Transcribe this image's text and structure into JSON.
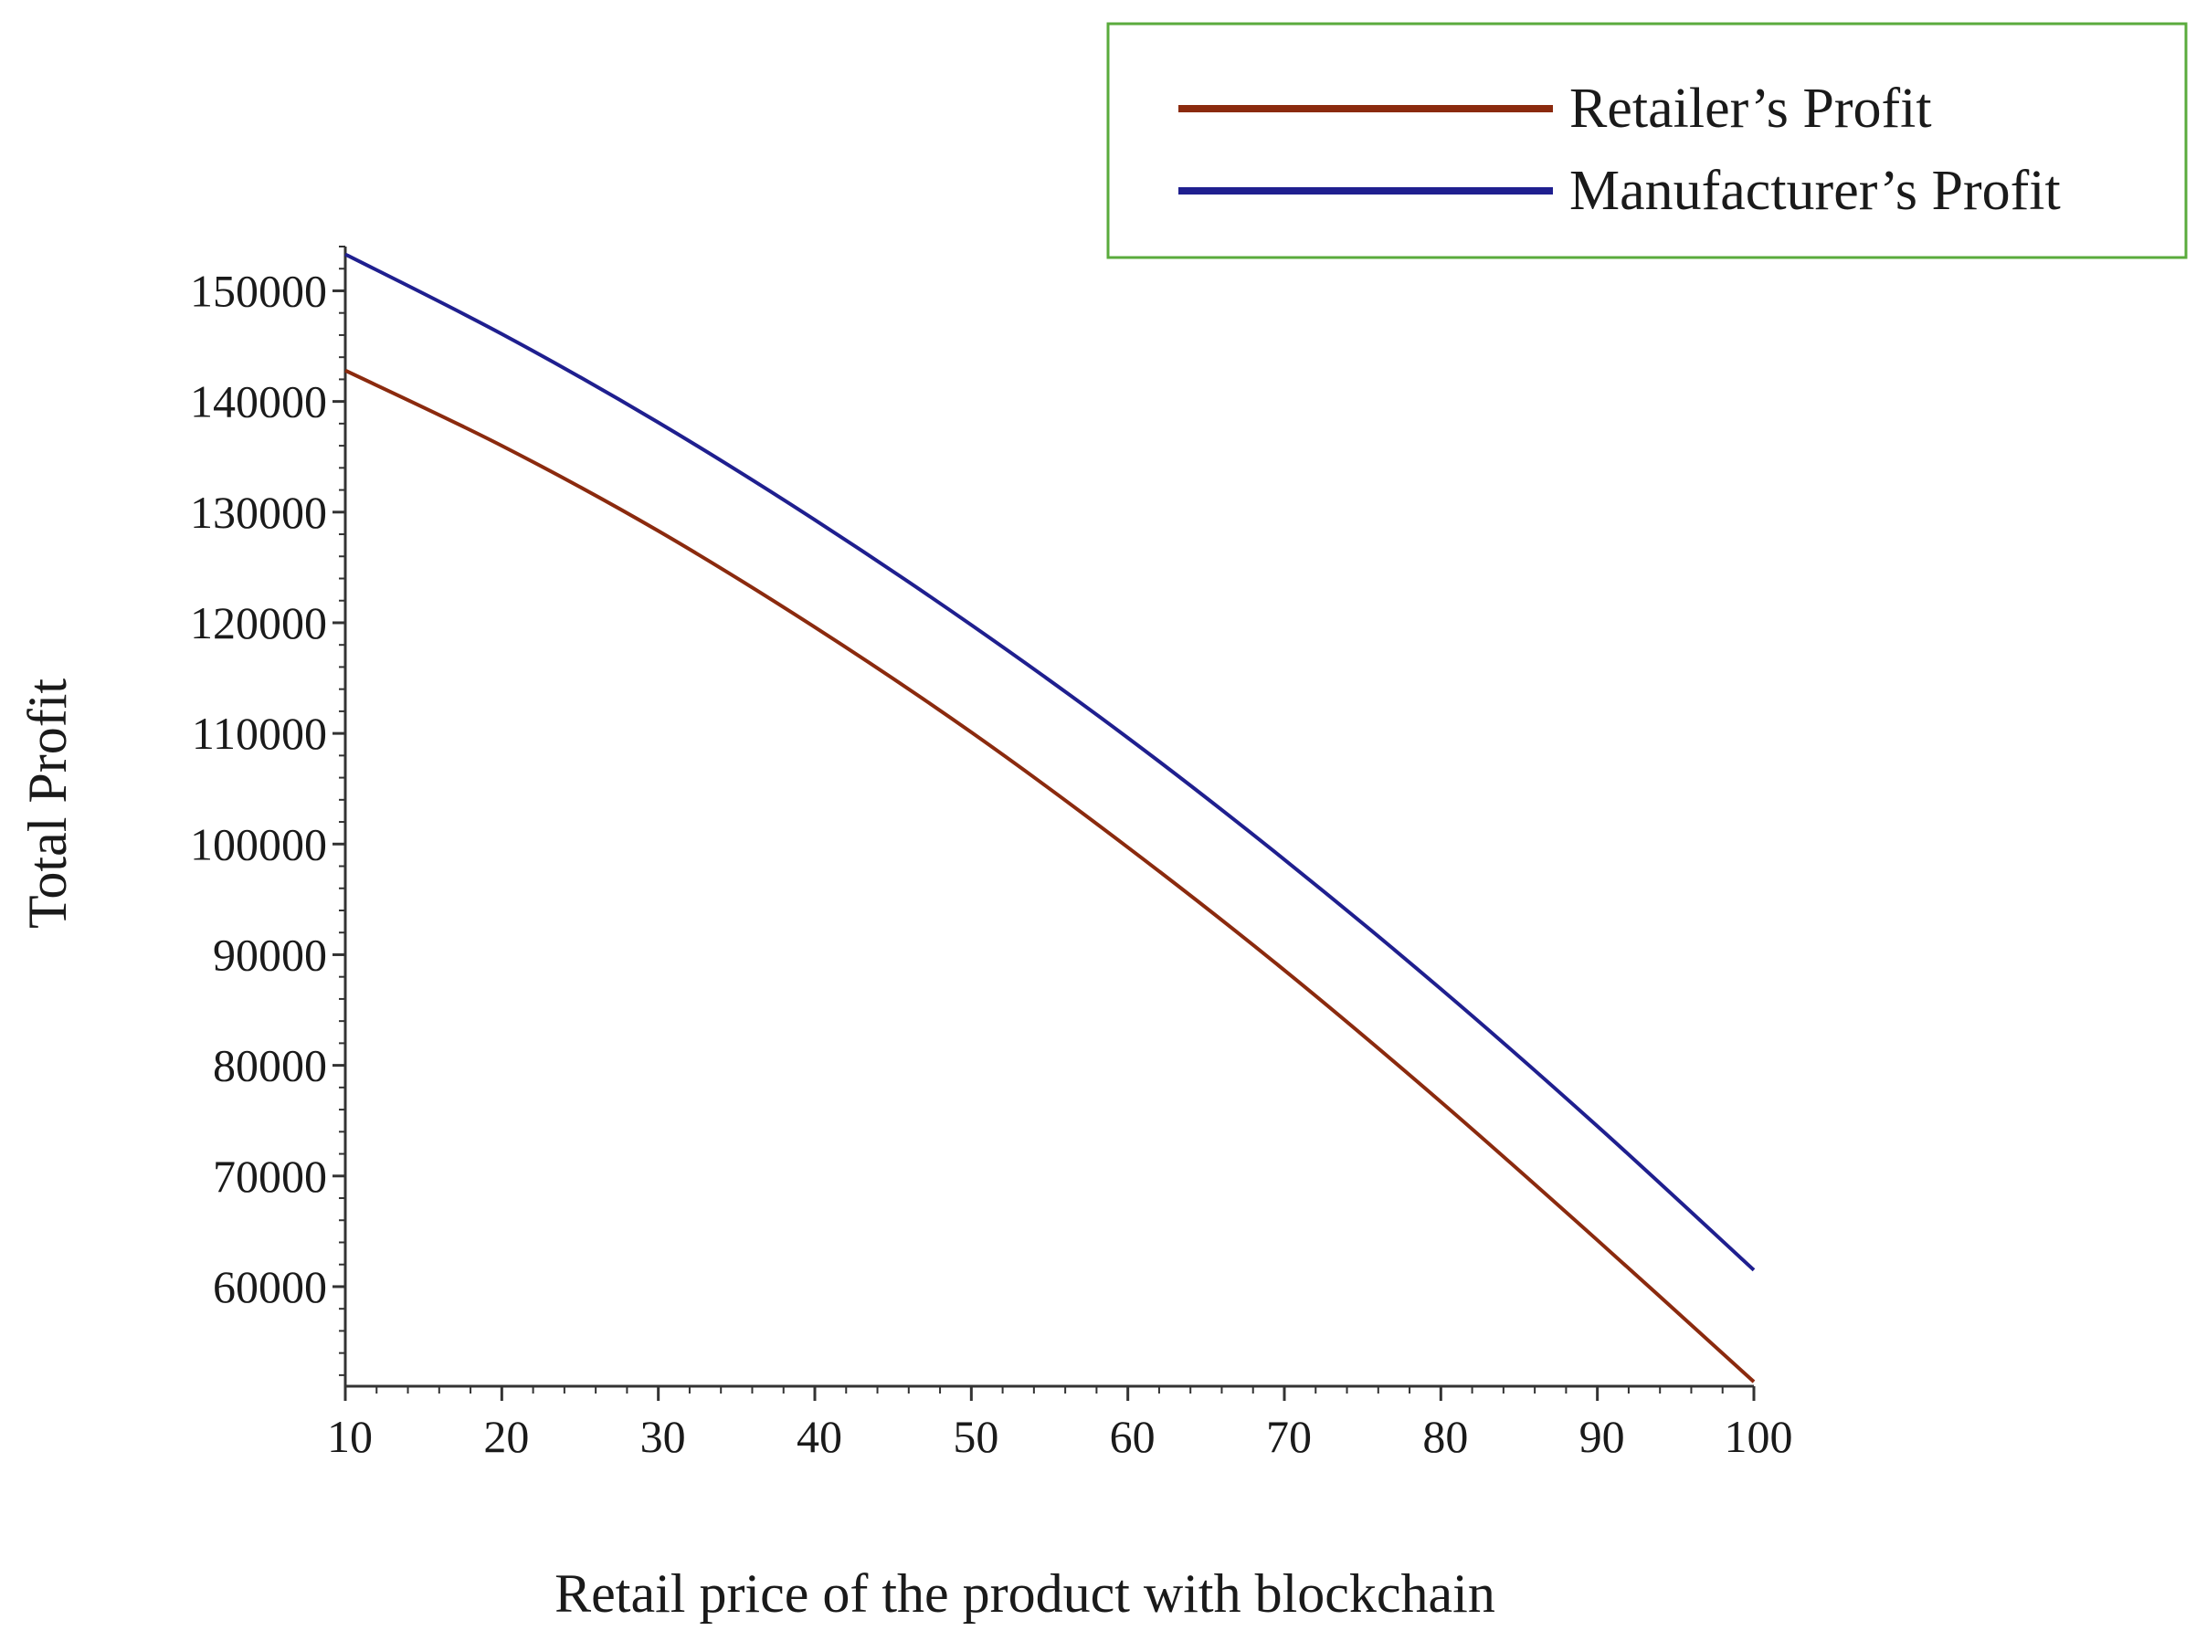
{
  "chart_data": {
    "type": "line",
    "title": "",
    "xlabel": "Retail price of the product with blockchain",
    "ylabel": "Total Profit",
    "xlim": [
      10,
      100
    ],
    "ylim": [
      51000,
      154000
    ],
    "x_ticks": [
      10,
      20,
      30,
      40,
      50,
      60,
      70,
      80,
      90,
      100
    ],
    "x_tick_labels": [
      "10",
      "20",
      "30",
      "40",
      "50",
      "60",
      "70",
      "80",
      "90",
      "100"
    ],
    "y_ticks": [
      60000,
      70000,
      80000,
      90000,
      100000,
      110000,
      120000,
      130000,
      140000,
      150000
    ],
    "y_tick_labels": [
      "60000",
      "70000",
      "80000",
      "90000",
      "100000",
      "110000",
      "120000",
      "130000",
      "140000",
      "150000"
    ],
    "grid": false,
    "legend_position": "top-right",
    "x": [
      10,
      20,
      30,
      40,
      50,
      60,
      70,
      80,
      90,
      100
    ],
    "series": [
      {
        "name": "Retailer’s Profit",
        "color": "#8b2a0e",
        "values": [
          142800,
          136000,
          128300,
          119600,
          110100,
          99700,
          88600,
          76700,
          64200,
          51400
        ]
      },
      {
        "name": "Manufacturer’s Profit",
        "color": "#1f1f8f",
        "values": [
          153300,
          146100,
          138100,
          129300,
          119800,
          109600,
          98600,
          86900,
          74500,
          61500
        ]
      }
    ],
    "legend_border_color": "#5aab3c",
    "axis_color": "#333333"
  }
}
